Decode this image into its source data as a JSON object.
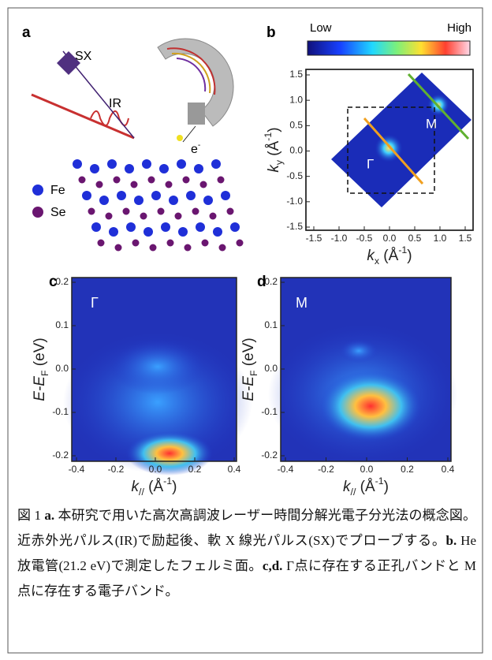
{
  "figure": {
    "a": {
      "label": "a",
      "sx": "SX",
      "ir": "IR",
      "electron": [
        {
          "text": "e"
        },
        {
          "text": "-",
          "style": "sup"
        }
      ],
      "legend": [
        {
          "text": "Fe",
          "color": "#1f2fd8"
        },
        {
          "text": "Se",
          "color": "#6a1670"
        }
      ]
    },
    "b": {
      "label": "b",
      "colorbar": {
        "low": "Low",
        "high": "High"
      },
      "xticks": [
        "-1.5",
        "-1.0",
        "-0.5",
        "0.0",
        "0.5",
        "1.0",
        "1.5"
      ],
      "yticks": [
        "1.5",
        "1.0",
        "0.5",
        "0.0",
        "-0.5",
        "-1.0",
        "-1.5"
      ],
      "xlabel": [
        {
          "text": "k",
          "style": "i"
        },
        {
          "text": "x",
          "style": "sub"
        },
        {
          "text": " (Å"
        },
        {
          "text": "-1",
          "style": "sup"
        },
        {
          "text": ")"
        }
      ],
      "ylabel": [
        {
          "text": "k",
          "style": "i"
        },
        {
          "text": "y",
          "style": "sub"
        },
        {
          "text": " (Å"
        },
        {
          "text": "-1",
          "style": "sup"
        },
        {
          "text": ")"
        }
      ],
      "points": {
        "m": "M",
        "gamma": "Γ"
      }
    },
    "c": {
      "label": "c",
      "point": "Γ",
      "xticks": [
        "-0.4",
        "-0.2",
        "0.0",
        "0.2",
        "0.4"
      ],
      "yticks": [
        "0.2",
        "0.1",
        "0.0",
        "-0.1",
        "-0.2"
      ],
      "xlabel": [
        {
          "text": "k",
          "style": "i"
        },
        {
          "text": "//",
          "style": "sub"
        },
        {
          "text": " (Å"
        },
        {
          "text": "-1",
          "style": "sup"
        },
        {
          "text": ")"
        }
      ],
      "ylabel": [
        {
          "text": "E-E",
          "style": "i"
        },
        {
          "text": "F",
          "style": "sub"
        },
        {
          "text": " (eV)"
        }
      ]
    },
    "d": {
      "label": "d",
      "point": "M",
      "xticks": [
        "-0.4",
        "-0.2",
        "0.0",
        "0.2",
        "0.4"
      ],
      "yticks": [
        "0.2",
        "0.1",
        "0.0",
        "-0.1",
        "-0.2"
      ],
      "xlabel": [
        {
          "text": "k",
          "style": "i"
        },
        {
          "text": "//",
          "style": "sub"
        },
        {
          "text": " (Å"
        },
        {
          "text": "-1",
          "style": "sup"
        },
        {
          "text": ")"
        }
      ],
      "ylabel": [
        {
          "text": "E-E",
          "style": "i"
        },
        {
          "text": "F",
          "style": "sub"
        },
        {
          "text": " (eV)"
        }
      ]
    }
  },
  "caption": [
    {
      "text": "図 1 "
    },
    {
      "text": "a.",
      "style": "b"
    },
    {
      "text": " 本研究で用いた高次高調波レーザー時間分解光電子分光法の概念図。近赤外光パルス(IR)で励起後、軟 X 線光パルス(SX)でプローブする。"
    },
    {
      "text": "b.",
      "style": "b"
    },
    {
      "text": " He 放電管(21.2 eV)で測定したフェルミ面。"
    },
    {
      "text": "c,d.",
      "style": "b"
    },
    {
      "text": " Γ点に存在する正孔バンドと M 点に存在する電子バンド。"
    }
  ]
}
